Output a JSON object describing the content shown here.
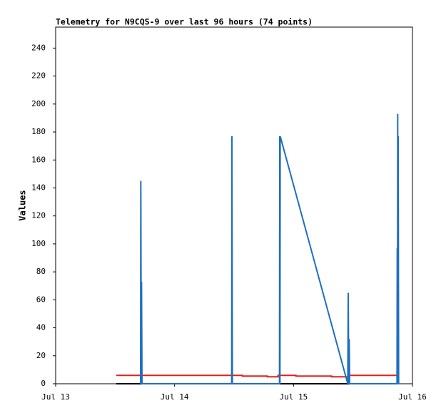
{
  "chart_data": {
    "type": "line",
    "title": "Telemetry for N9CQS-9 over last 96 hours (74 points)",
    "y_label": "Values",
    "xlim": [
      0,
      3
    ],
    "xticks": [
      {
        "value": 0,
        "label": "Jul 13"
      },
      {
        "value": 1,
        "label": "Jul 14"
      },
      {
        "value": 2,
        "label": "Jul 15"
      },
      {
        "value": 3,
        "label": "Jul 16"
      }
    ],
    "ylim": [
      0,
      255
    ],
    "yticks": [
      0,
      20,
      40,
      60,
      80,
      100,
      120,
      140,
      160,
      180,
      200,
      220,
      240
    ],
    "series": [
      {
        "color": "#000000",
        "x": [
          0.51,
          2.87
        ],
        "values": [
          0,
          0
        ]
      },
      {
        "color": "#e0201a",
        "x": [
          0.51,
          1.57,
          1.57,
          1.78,
          1.78,
          1.87,
          1.87,
          2.02,
          2.02,
          2.32,
          2.32,
          2.46,
          2.46,
          2.87
        ],
        "values": [
          6,
          6,
          5.5,
          5.5,
          5,
          5,
          6,
          6,
          5.5,
          5.5,
          5,
          5,
          6,
          6
        ]
      },
      {
        "color": "#1f6fc0",
        "x": [
          0.714,
          0.716,
          0.72,
          0.722,
          0.726,
          1.48,
          1.482,
          1.486,
          1.882,
          1.884,
          1.886,
          1.888,
          2.456,
          2.46,
          2.464,
          2.468,
          2.472,
          2.87,
          2.872,
          2.874,
          2.876,
          2.878,
          2.88,
          2.884
        ],
        "values": [
          0,
          145,
          0,
          73,
          0,
          0,
          177,
          0,
          0,
          177,
          0,
          177,
          0,
          65,
          0,
          32,
          0,
          0,
          97,
          0,
          193,
          0,
          177,
          0
        ]
      }
    ]
  }
}
